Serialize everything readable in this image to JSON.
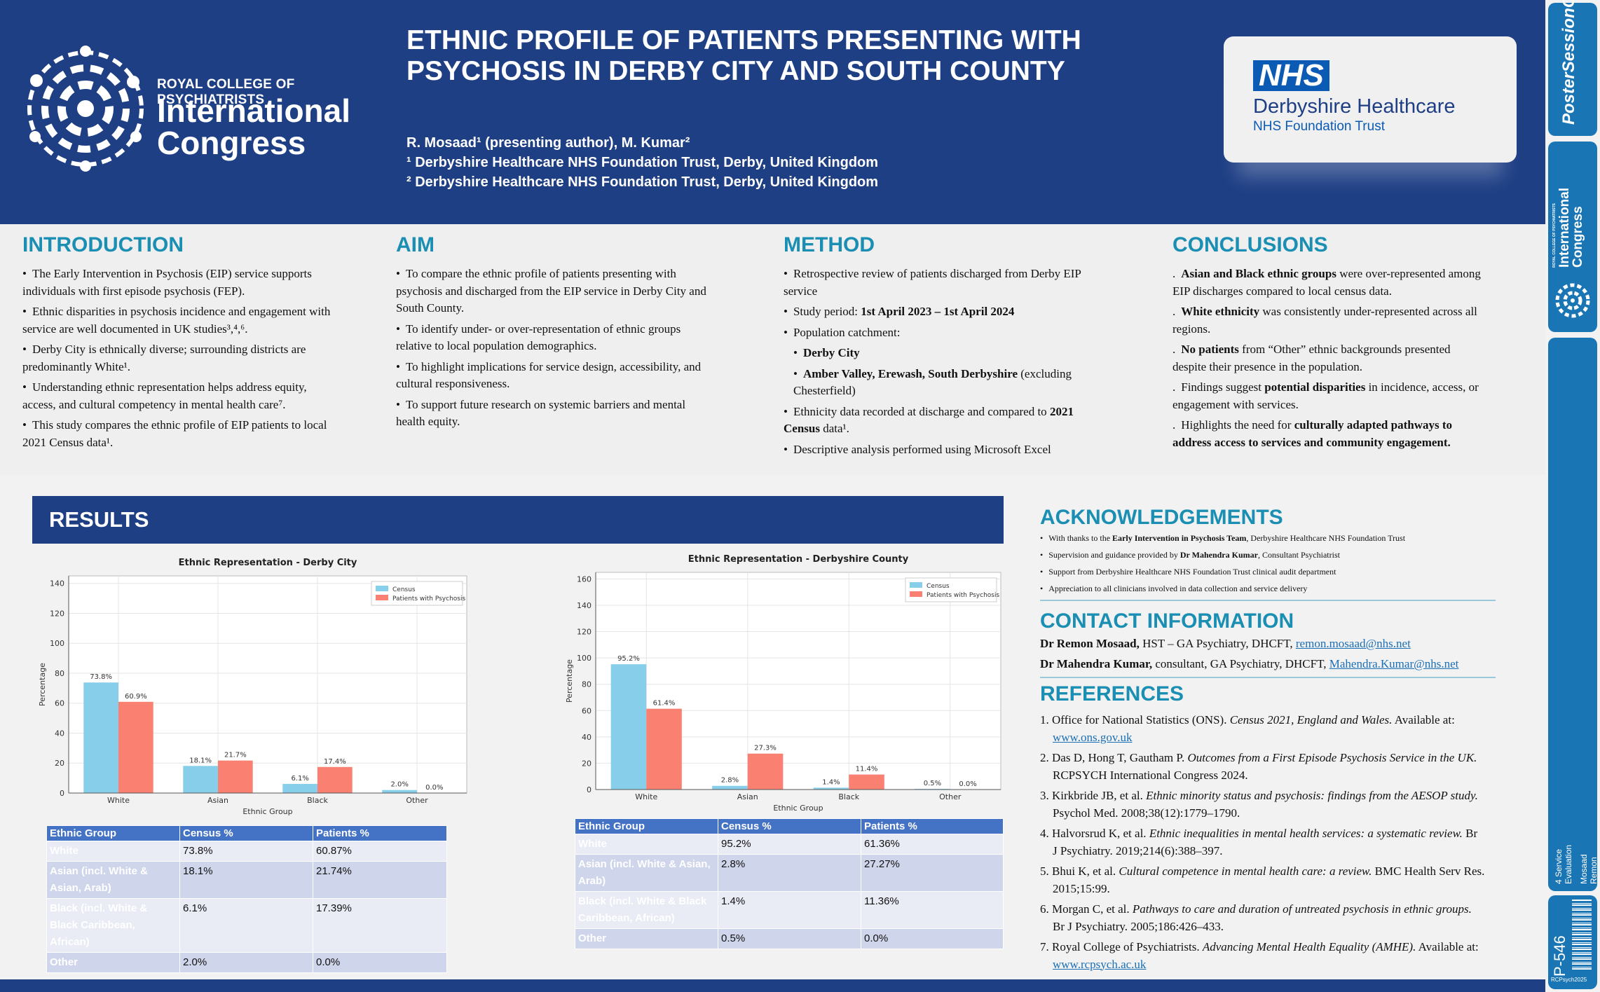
{
  "header": {
    "logo_small": "ROYAL COLLEGE OF PSYCHIATRISTS",
    "logo_big_1": "International",
    "logo_big_2": "Congress",
    "title_1": "ETHNIC PROFILE OF PATIENTS PRESENTING WITH",
    "title_2": "PSYCHOSIS IN DERBY CITY AND SOUTH COUNTY",
    "authors": "R. Mosaad¹ (presenting author), M. Kumar²",
    "affil_1": "¹ Derbyshire Healthcare NHS Foundation Trust, Derby, United Kingdom",
    "affil_2": "² Derbyshire Healthcare NHS Foundation Trust, Derby, United Kingdom",
    "nhs_badge": "NHS",
    "nhs_name": "Derbyshire Healthcare",
    "nhs_trust": "NHS Foundation Trust"
  },
  "sidebar": {
    "top_brand": "PosterSessionOnline",
    "mid_brand": "International Congress",
    "mid_small": "ROYAL COLLEGE OF PSYCHIATRISTS",
    "category": "4 Service Evaluation",
    "author": "Mosaad Remon",
    "poster_id": "P-546",
    "event": "RCPsych2025"
  },
  "introduction": {
    "heading": "INTRODUCTION",
    "items": [
      "The Early Intervention in Psychosis (EIP) service supports individuals with first episode psychosis (FEP).",
      "Ethnic disparities in psychosis incidence and engagement with service are well documented in UK studies³,⁴,⁶.",
      "Derby City is ethnically diverse; surrounding districts are predominantly White¹.",
      "Understanding ethnic representation helps address equity, access, and cultural competency in mental health care⁷.",
      "This study compares the ethnic profile of EIP patients to local 2021 Census data¹."
    ]
  },
  "aim": {
    "heading": "AIM",
    "items": [
      "To compare the ethnic profile of patients presenting with psychosis and discharged from the EIP service in Derby City and South County.",
      "To identify under- or over-representation of ethnic groups relative to local population demographics.",
      "To highlight implications for service design, accessibility, and cultural responsiveness.",
      "To support future research on systemic barriers and mental health equity."
    ]
  },
  "method": {
    "heading": "METHOD",
    "item_1": "Retrospective review of patients discharged from Derby EIP service",
    "item_2_pre": "Study period: ",
    "item_2_bold": "1st April 2023 – 1st April 2024",
    "item_3": "Population catchment:",
    "sub_1": "Derby City",
    "sub_2_bold": "Amber Valley, Erewash, South Derbyshire",
    "sub_2_rest": " (excluding Chesterfield)",
    "item_4_pre": "Ethnicity data recorded at discharge and compared to ",
    "item_4_bold": "2021 Census",
    "item_4_post": " data¹.",
    "item_5": "Descriptive analysis performed using Microsoft Excel"
  },
  "conclusions": {
    "heading": "CONCLUSIONS",
    "c1_bold": "Asian and Black ethnic groups",
    "c1_rest": " were over-represented among EIP discharges compared to local census data.",
    "c2_bold": "White ethnicity",
    "c2_rest": " was consistently under-represented across all regions.",
    "c3_bold": "No patients",
    "c3_rest": " from “Other” ethnic backgrounds presented despite their presence in the population.",
    "c4_pre": "Findings suggest ",
    "c4_bold": "potential disparities",
    "c4_rest": " in incidence, access, or engagement with services.",
    "c5_pre": "Highlights the need for ",
    "c5_bold": "culturally adapted pathways to address access to services and community engagement."
  },
  "results": {
    "heading": "RESULTS",
    "table_headers": [
      "Ethnic Group",
      "Census %",
      "Patients %"
    ],
    "city_table": [
      [
        "White",
        "73.8%",
        "60.87%"
      ],
      [
        "Asian (incl. White & Asian, Arab)",
        "18.1%",
        "21.74%"
      ],
      [
        "Black (incl. White & Black Caribbean, African)",
        "6.1%",
        "17.39%"
      ],
      [
        "Other",
        "2.0%",
        "0.0%"
      ]
    ],
    "county_table": [
      [
        "White",
        "95.2%",
        "61.36%"
      ],
      [
        "Asian (incl. White & Asian, Arab)",
        "2.8%",
        "27.27%"
      ],
      [
        "Black (incl. White & Black Caribbean, African)",
        "1.4%",
        "11.36%"
      ],
      [
        "Other",
        "0.5%",
        "0.0%"
      ]
    ]
  },
  "chart_data": [
    {
      "type": "bar",
      "title": "Ethnic Representation - Derby City",
      "xlabel": "Ethnic Group",
      "ylabel": "Percentage",
      "categories": [
        "White",
        "Asian",
        "Black",
        "Other"
      ],
      "series": [
        {
          "name": "Census",
          "values": [
            73.8,
            18.1,
            6.1,
            2.0
          ],
          "labels": [
            "73.8%",
            "18.1%",
            "6.1%",
            "2.0%"
          ],
          "color": "#87ceeb"
        },
        {
          "name": "Patients with Psychosis",
          "values": [
            60.9,
            21.7,
            17.4,
            0.0
          ],
          "labels": [
            "60.9%",
            "21.7%",
            "17.4%",
            "0.0%"
          ],
          "color": "#fa8072"
        }
      ],
      "ylim": [
        0,
        145
      ],
      "yticks": [
        0,
        20,
        40,
        60,
        80,
        100,
        120,
        140
      ],
      "grid": true,
      "legend": "top-right"
    },
    {
      "type": "bar",
      "title": "Ethnic Representation - Derbyshire County",
      "xlabel": "Ethnic Group",
      "ylabel": "Percentage",
      "categories": [
        "White",
        "Asian",
        "Black",
        "Other"
      ],
      "series": [
        {
          "name": "Census",
          "values": [
            95.2,
            2.8,
            1.4,
            0.5
          ],
          "labels": [
            "95.2%",
            "2.8%",
            "1.4%",
            "0.5%"
          ],
          "color": "#87ceeb"
        },
        {
          "name": "Patients with Psychosis",
          "values": [
            61.4,
            27.3,
            11.4,
            0.0
          ],
          "labels": [
            "61.4%",
            "27.3%",
            "11.4%",
            "0.0%"
          ],
          "color": "#fa8072"
        }
      ],
      "ylim": [
        0,
        165
      ],
      "yticks": [
        0,
        20,
        40,
        60,
        80,
        100,
        120,
        140,
        160
      ],
      "grid": true,
      "legend": "top-right"
    }
  ],
  "acknowledgements": {
    "heading": "ACKNOWLEDGEMENTS",
    "a1_pre": "With thanks to the ",
    "a1_bold": "Early Intervention in Psychosis Team",
    "a1_rest": ", Derbyshire Healthcare NHS Foundation Trust",
    "a2_pre": "Supervision and guidance provided by ",
    "a2_bold": "Dr Mahendra Kumar",
    "a2_rest": ", Consultant Psychiatrist",
    "a3": "Support from Derbyshire Healthcare NHS Foundation Trust clinical audit department",
    "a4": "Appreciation to all clinicians involved in data collection and service delivery"
  },
  "contact": {
    "heading": "CONTACT INFORMATION",
    "c1_name": "Dr Remon Mosaad,",
    "c1_role": " HST – GA Psychiatry, DHCFT, ",
    "c1_email": "remon.mosaad@nhs.net",
    "c2_name": "Dr Mahendra Kumar,",
    "c2_role": " consultant, GA Psychiatry, DHCFT, ",
    "c2_email": "Mahendra.Kumar@nhs.net"
  },
  "references": {
    "heading": "REFERENCES",
    "r1_pre": "1. Office for National Statistics (ONS). ",
    "r1_it": "Census 2021, England and Wales.",
    "r1_post": " Available at: ",
    "r1_link": "www.ons.gov.uk",
    "r2_pre": "2. Das D, Hong T, Gautham P. ",
    "r2_it": "Outcomes from a First Episode Psychosis Service in the UK.",
    "r2_post": " RCPSYCH International Congress 2024.",
    "r3_pre": "3. Kirkbride JB, et al. ",
    "r3_it": "Ethnic minority status and psychosis: findings from the AESOP study.",
    "r3_post": " Psychol Med. 2008;38(12):1779–1790.",
    "r4_pre": "4. Halvorsrud K, et al. ",
    "r4_it": "Ethnic inequalities in mental health services: a systematic review.",
    "r4_post": " Br J Psychiatry. 2019;214(6):388–397.",
    "r5_pre": "5. Bhui K, et al. ",
    "r5_it": "Cultural competence in mental health care: a review.",
    "r5_post": " BMC Health Serv Res. 2015;15:99.",
    "r6_pre": "6. Morgan C, et al. ",
    "r6_it": "Pathways to care and duration of untreated psychosis in ethnic groups.",
    "r6_post": " Br J Psychiatry. 2005;186:426–433.",
    "r7_pre": "7. Royal College of Psychiatrists. ",
    "r7_it": "Advancing Mental Health Equality (AMHE).",
    "r7_post": " Available at: ",
    "r7_link": "www.rcpsych.ac.uk"
  }
}
